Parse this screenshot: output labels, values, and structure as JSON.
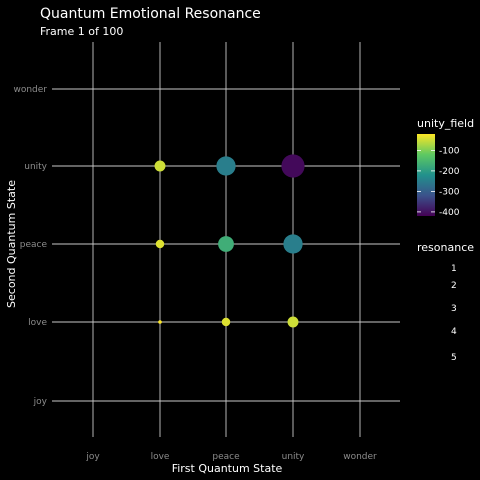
{
  "chart_data": {
    "type": "scatter",
    "title": "Quantum Emotional Resonance",
    "subtitle": "Frame 1 of 100",
    "xlabel": "First Quantum State",
    "ylabel": "Second Quantum State",
    "x_categories": [
      "joy",
      "love",
      "peace",
      "unity",
      "wonder"
    ],
    "y_categories": [
      "joy",
      "love",
      "peace",
      "unity",
      "wonder"
    ],
    "points": [
      {
        "x": "love",
        "y": "love",
        "unity_field": -20,
        "resonance": 1
      },
      {
        "x": "love",
        "y": "peace",
        "unity_field": -40,
        "resonance": 2
      },
      {
        "x": "love",
        "y": "unity",
        "unity_field": -50,
        "resonance": 2.5
      },
      {
        "x": "peace",
        "y": "love",
        "unity_field": -40,
        "resonance": 2
      },
      {
        "x": "peace",
        "y": "peace",
        "unity_field": -170,
        "resonance": 3.5
      },
      {
        "x": "peace",
        "y": "unity",
        "unity_field": -250,
        "resonance": 4.2
      },
      {
        "x": "unity",
        "y": "love",
        "unity_field": -50,
        "resonance": 2.5
      },
      {
        "x": "unity",
        "y": "peace",
        "unity_field": -250,
        "resonance": 4.2
      },
      {
        "x": "unity",
        "y": "unity",
        "unity_field": -410,
        "resonance": 5
      }
    ],
    "color_legend": {
      "title": "unity_field",
      "ticks": [
        -100,
        -200,
        -300,
        -400
      ],
      "range": [
        -420,
        -20
      ],
      "colors": [
        "#440154",
        "#3b528b",
        "#21918c",
        "#5ec962",
        "#fde725"
      ]
    },
    "size_legend": {
      "title": "resonance",
      "values": [
        1,
        2,
        3,
        4,
        5
      ]
    },
    "grid": true,
    "legend_position": "right"
  }
}
